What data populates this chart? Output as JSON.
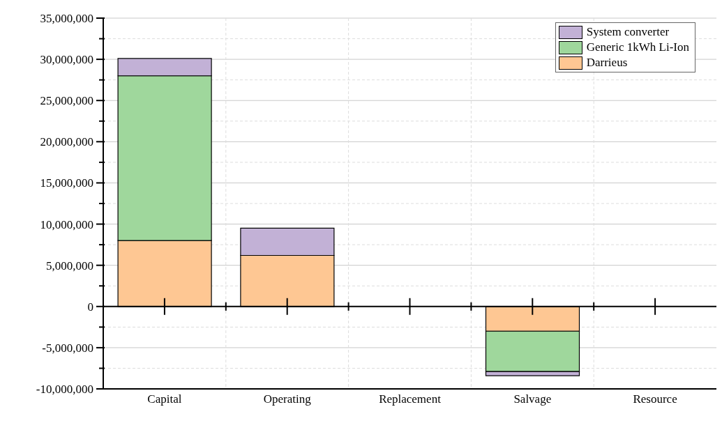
{
  "chart_data": {
    "type": "bar",
    "stacked": true,
    "categories": [
      "Capital",
      "Operating",
      "Replacement",
      "Salvage",
      "Resource"
    ],
    "series": [
      {
        "name": "Darrieus",
        "color": "#fec793",
        "values": [
          8000000,
          6200000,
          0,
          -3000000,
          0
        ]
      },
      {
        "name": "Generic 1kWh Li-Ion",
        "color": "#9fd79c",
        "values": [
          20000000,
          0,
          0,
          -4900000,
          0
        ]
      },
      {
        "name": "System converter",
        "color": "#c2b1d6",
        "values": [
          2100000,
          3300000,
          0,
          -500000,
          0
        ]
      }
    ],
    "ylim": [
      -10000000,
      35000000
    ],
    "yticks": [
      {
        "value": -10000000,
        "label": "-10,000,000"
      },
      {
        "value": -7500000,
        "label": null
      },
      {
        "value": -5000000,
        "label": "-5,000,000"
      },
      {
        "value": -2500000,
        "label": null
      },
      {
        "value": 0,
        "label": "0"
      },
      {
        "value": 2500000,
        "label": null
      },
      {
        "value": 5000000,
        "label": "5,000,000"
      },
      {
        "value": 7500000,
        "label": null
      },
      {
        "value": 10000000,
        "label": "10,000,000"
      },
      {
        "value": 12500000,
        "label": null
      },
      {
        "value": 15000000,
        "label": "15,000,000"
      },
      {
        "value": 17500000,
        "label": null
      },
      {
        "value": 20000000,
        "label": "20,000,000"
      },
      {
        "value": 22500000,
        "label": null
      },
      {
        "value": 25000000,
        "label": "25,000,000"
      },
      {
        "value": 27500000,
        "label": null
      },
      {
        "value": 30000000,
        "label": "30,000,000"
      },
      {
        "value": 32500000,
        "label": null
      },
      {
        "value": 35000000,
        "label": "35,000,000"
      }
    ],
    "grid": true,
    "legend": "top right"
  }
}
